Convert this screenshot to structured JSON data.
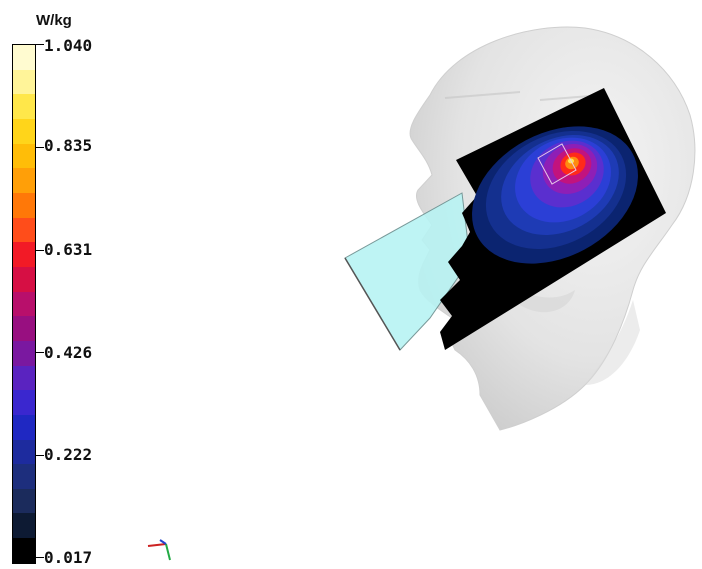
{
  "legend": {
    "unit": "W/kg",
    "ticks": [
      "1.040",
      "0.835",
      "0.631",
      "0.426",
      "0.222",
      "0.017"
    ],
    "colors": [
      "#fffbd0",
      "#fff499",
      "#ffe74a",
      "#ffd51a",
      "#ffbd08",
      "#ff9f08",
      "#ff7808",
      "#ff4d1a",
      "#f21a26",
      "#d60f44",
      "#b80f6b",
      "#980f80",
      "#7a18a0",
      "#5a23c0",
      "#3a27cf",
      "#1f28c2",
      "#1d2b9e",
      "#1d2e7d",
      "#1b2b5c",
      "#0d1a33",
      "#000000"
    ]
  },
  "scene": {
    "head_color": "#e6e6e6",
    "phone_color": "#b8f3f3",
    "measurement_plate_color": "#000000",
    "hotspot_colors": [
      "#0d2a7a",
      "#1a3bb8",
      "#2b3fd6",
      "#5a2fcf",
      "#8e1fb6",
      "#c2137e",
      "#ff2a1a",
      "#ff8a10",
      "#ffe850"
    ]
  },
  "axis_triad": {
    "icon": "axis-triad-icon"
  }
}
